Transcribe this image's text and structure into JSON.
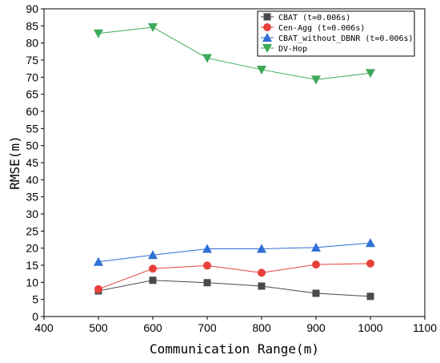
{
  "chart_data": {
    "type": "line",
    "x": [
      500,
      600,
      700,
      800,
      900,
      1000
    ],
    "xlabel": "Communication Range(m)",
    "ylabel": "RMSE(m)",
    "xlim": [
      400,
      1100
    ],
    "ylim": [
      0,
      90
    ],
    "xticks": [
      400,
      500,
      600,
      700,
      800,
      900,
      1000,
      1100
    ],
    "yticks": [
      0,
      5,
      10,
      15,
      20,
      25,
      30,
      35,
      40,
      45,
      50,
      55,
      60,
      65,
      70,
      75,
      80,
      85,
      90
    ],
    "grid": false,
    "legend_position": "top-right",
    "series": [
      {
        "name": "CBAT (t=0.006s)",
        "marker": "square",
        "color": "#4a4a4a",
        "values": [
          7.5,
          10.6,
          9.9,
          8.9,
          6.8,
          5.9
        ]
      },
      {
        "name": "Cen-Agg (t=0.006s)",
        "marker": "circle",
        "color": "#e8403a",
        "values": [
          8.0,
          14.0,
          14.9,
          12.8,
          15.2,
          15.5
        ]
      },
      {
        "name": "CBAT_without_DBNR (t=0.006s)",
        "marker": "triangle-up",
        "color": "#2f6fd6",
        "values": [
          16.0,
          18.0,
          19.8,
          19.8,
          20.2,
          21.5
        ]
      },
      {
        "name": "DV-Hop",
        "marker": "triangle-down",
        "color": "#3daa5a",
        "values": [
          82.8,
          84.6,
          75.6,
          72.2,
          69.3,
          71.2
        ]
      }
    ]
  }
}
